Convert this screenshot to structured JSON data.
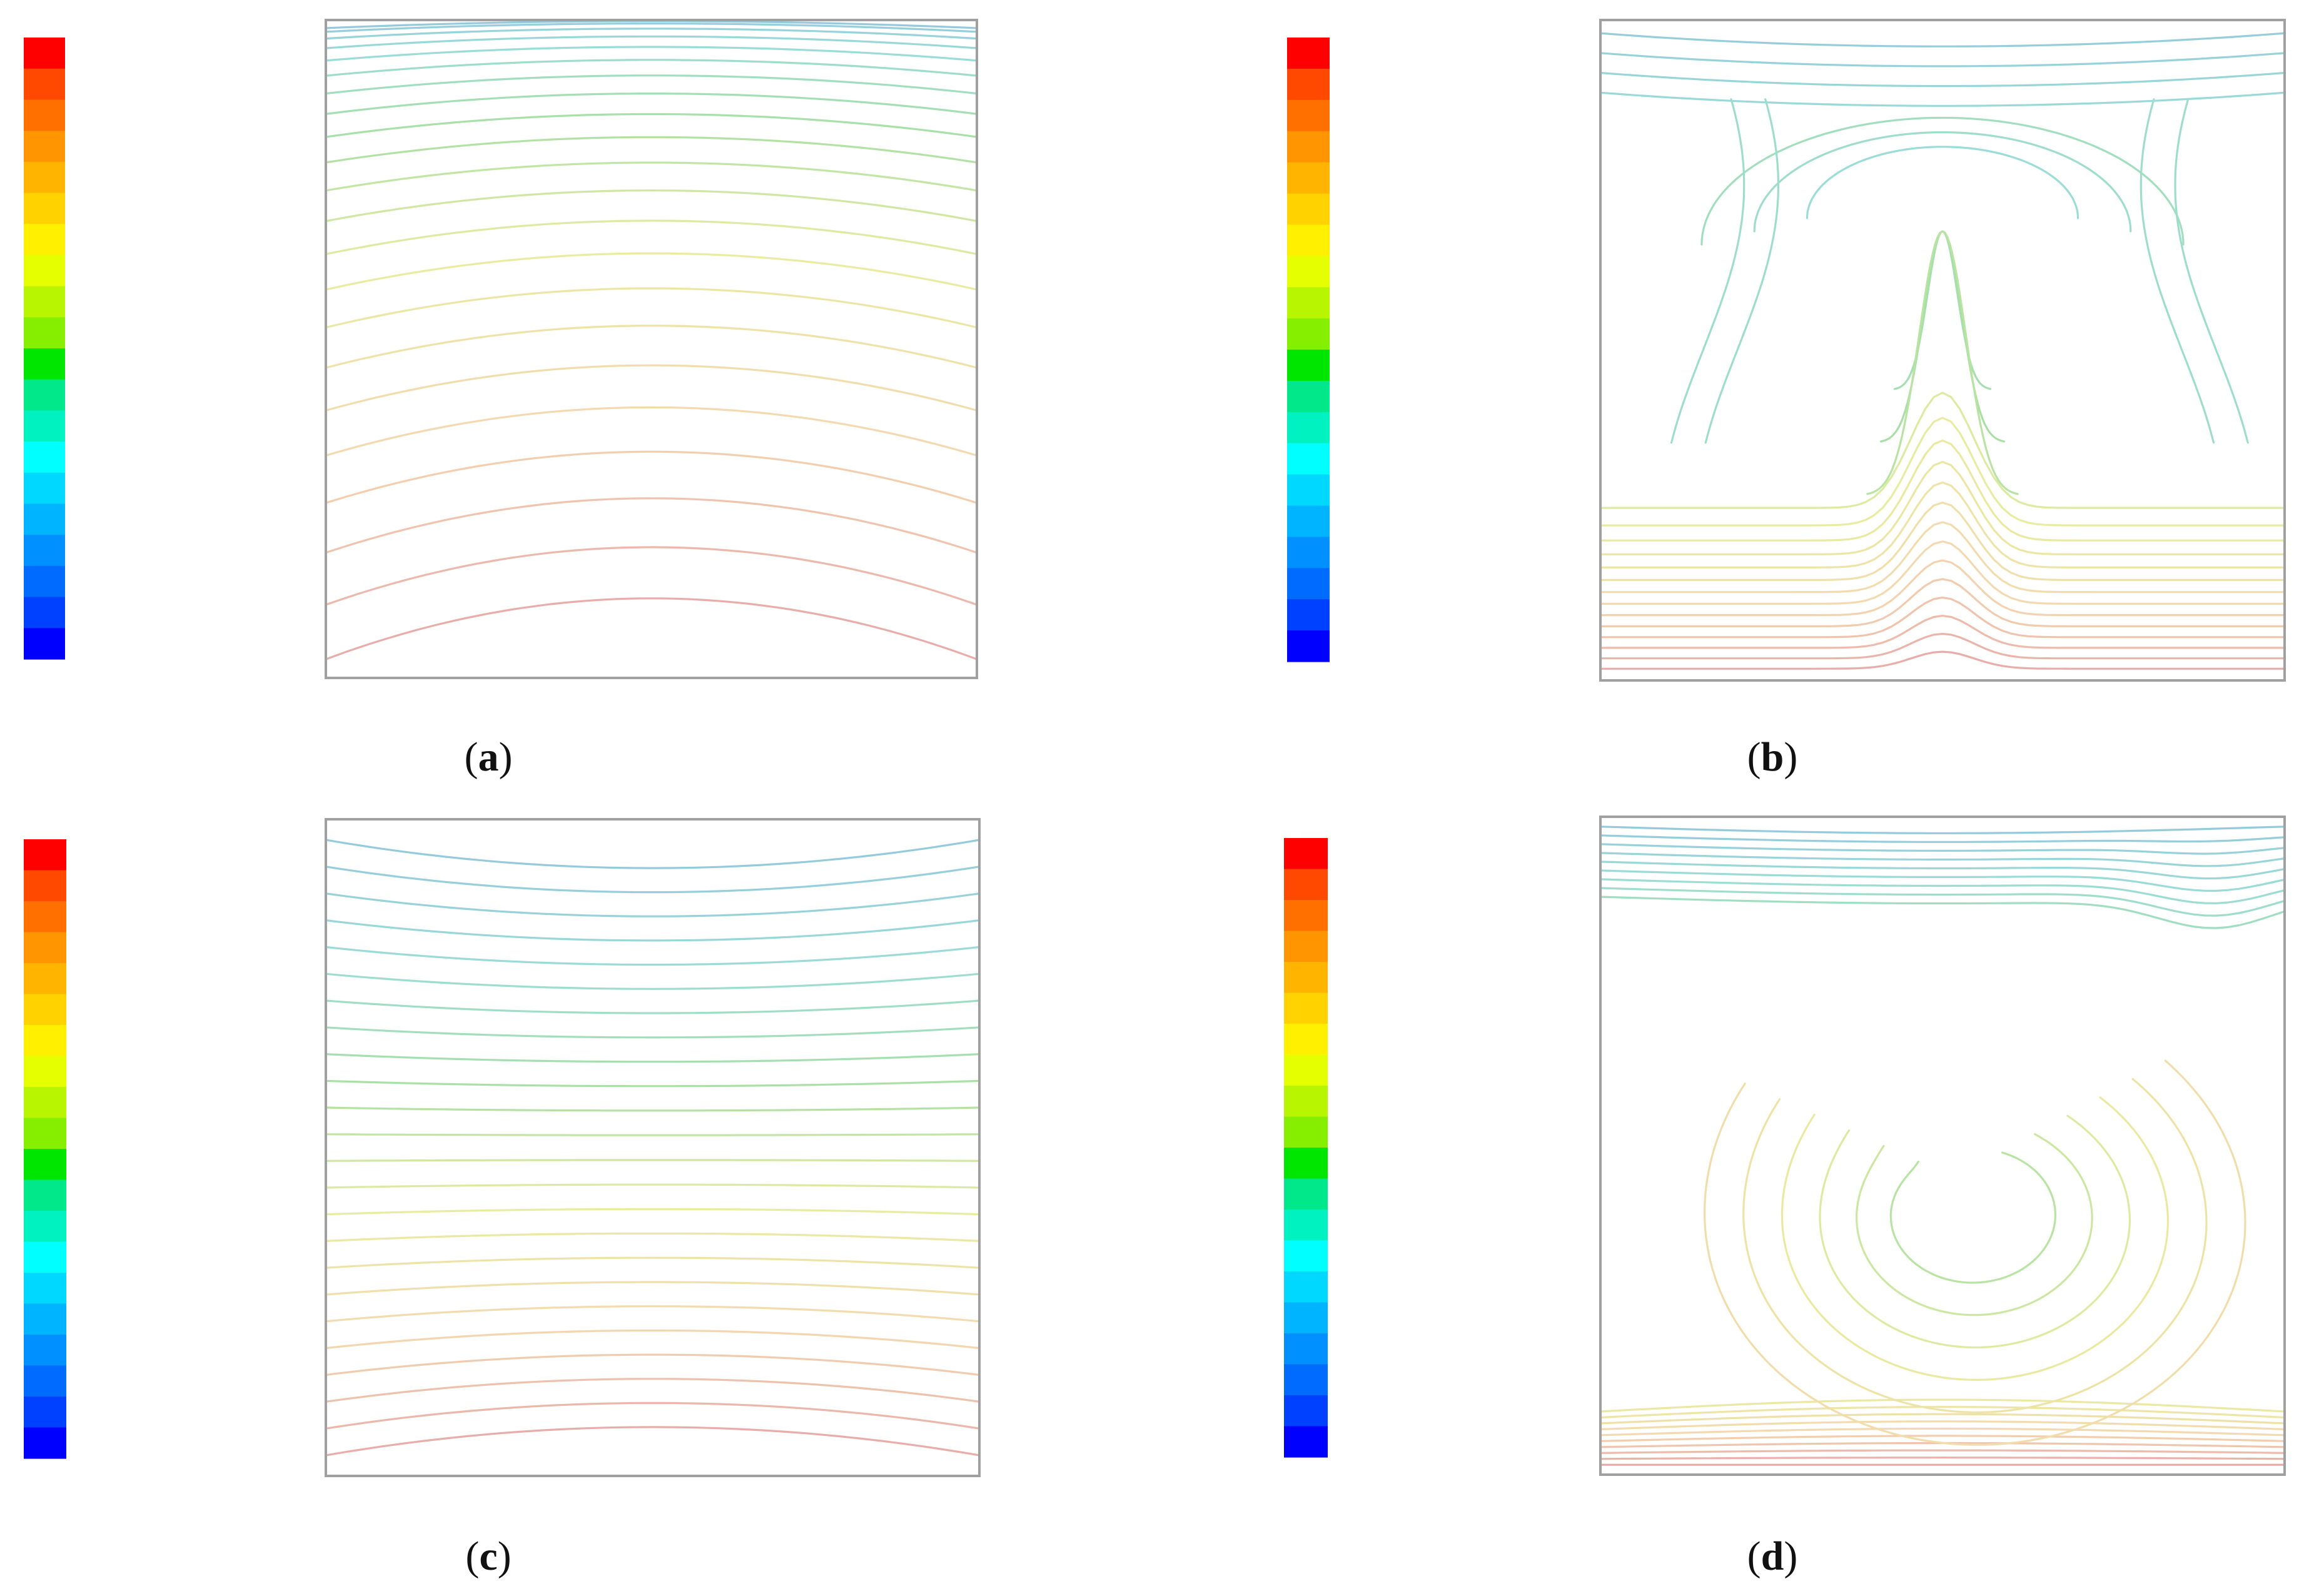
{
  "figure": {
    "panels": [
      {
        "id": "a",
        "label_open": "(",
        "letter": "a",
        "label_close": ")",
        "pattern": "conduction"
      },
      {
        "id": "b",
        "label_open": "(",
        "letter": "b",
        "label_close": ")",
        "pattern": "plume"
      },
      {
        "id": "c",
        "label_open": "(",
        "letter": "c",
        "label_close": ")",
        "pattern": "stratified"
      },
      {
        "id": "d",
        "label_open": "(",
        "letter": "d",
        "label_close": ")",
        "pattern": "swirl"
      }
    ],
    "colorbar": {
      "segments": 20,
      "colors": [
        "#ff0000",
        "#ff4800",
        "#ff7000",
        "#ff9500",
        "#ffb400",
        "#ffd200",
        "#fff000",
        "#e6ff00",
        "#b8f500",
        "#86ef00",
        "#00e600",
        "#00e88a",
        "#00f2c0",
        "#00ffff",
        "#00d8ff",
        "#00b4ff",
        "#0090ff",
        "#006cff",
        "#0040ff",
        "#0000ff"
      ]
    },
    "contour_colors": {
      "cold": "#94c8dc",
      "cool": "#9adcd8",
      "mid": "#a8e0a4",
      "warm": "#e8eca0",
      "hot": "#f4d8b0",
      "hottest": "#e8a8a8"
    },
    "frame_color": "#a0a0a0"
  }
}
